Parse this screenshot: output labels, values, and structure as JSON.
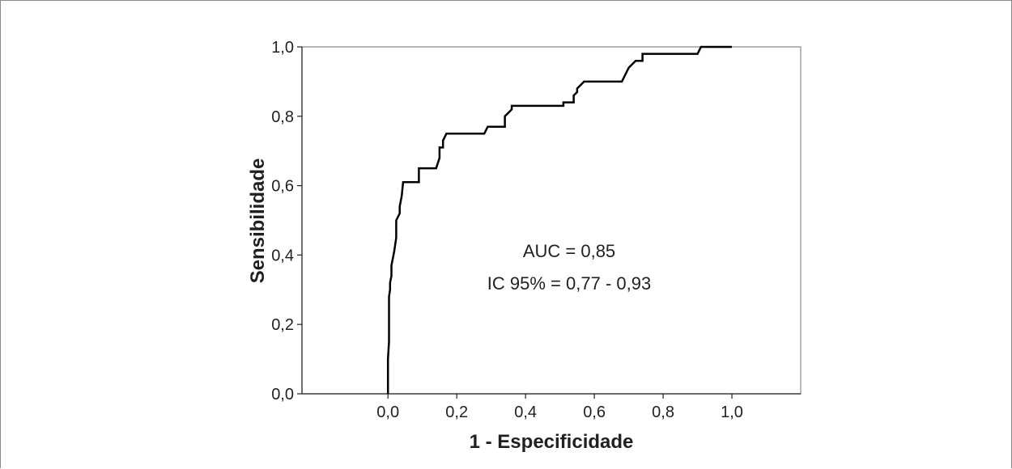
{
  "chart_data": {
    "type": "line",
    "xlabel": "1 - Especificidade",
    "ylabel": "Sensibilidade",
    "xlim": [
      -0.25,
      1.2
    ],
    "ylim": [
      0,
      1
    ],
    "x_ticks": [
      0.0,
      0.2,
      0.4,
      0.6,
      0.8,
      1.0
    ],
    "x_tick_labels": [
      "0,0",
      "0,2",
      "0,4",
      "0,6",
      "0,8",
      "1,0"
    ],
    "y_ticks": [
      0.0,
      0.2,
      0.4,
      0.6,
      0.8,
      1.0
    ],
    "y_tick_labels": [
      "0,0",
      "0,2",
      "0,4",
      "0,6",
      "0,8",
      "1,0"
    ],
    "grid": false,
    "annotations": [
      "AUC = 0,85",
      "IC 95% = 0,77 - 0,93"
    ],
    "line_color": "#000000",
    "series": [
      {
        "x": [
          0.0,
          0.0,
          0.003,
          0.003,
          0.006,
          0.006,
          0.01,
          0.01,
          0.018,
          0.018,
          0.024,
          0.024,
          0.034,
          0.034,
          0.04,
          0.044,
          0.05,
          0.05,
          0.09,
          0.09,
          0.14,
          0.15,
          0.15,
          0.16,
          0.16,
          0.17,
          0.17,
          0.28,
          0.29,
          0.29,
          0.34,
          0.34,
          0.35,
          0.35,
          0.36,
          0.36,
          0.51,
          0.51,
          0.54,
          0.54,
          0.55,
          0.55,
          0.57,
          0.57,
          0.68,
          0.7,
          0.7,
          0.72,
          0.72,
          0.74,
          0.74,
          0.76,
          0.76,
          0.9,
          0.91,
          0.91,
          1.0
        ],
        "y": [
          0.0,
          0.1,
          0.15,
          0.28,
          0.3,
          0.32,
          0.34,
          0.37,
          0.41,
          0.41,
          0.45,
          0.5,
          0.52,
          0.54,
          0.57,
          0.61,
          0.61,
          0.61,
          0.61,
          0.65,
          0.65,
          0.68,
          0.71,
          0.71,
          0.73,
          0.75,
          0.75,
          0.75,
          0.77,
          0.77,
          0.77,
          0.8,
          0.81,
          0.81,
          0.82,
          0.83,
          0.83,
          0.84,
          0.84,
          0.86,
          0.87,
          0.88,
          0.9,
          0.9,
          0.9,
          0.94,
          0.94,
          0.96,
          0.96,
          0.96,
          0.98,
          0.98,
          0.98,
          0.98,
          1.0,
          1.0,
          1.0
        ]
      }
    ]
  }
}
